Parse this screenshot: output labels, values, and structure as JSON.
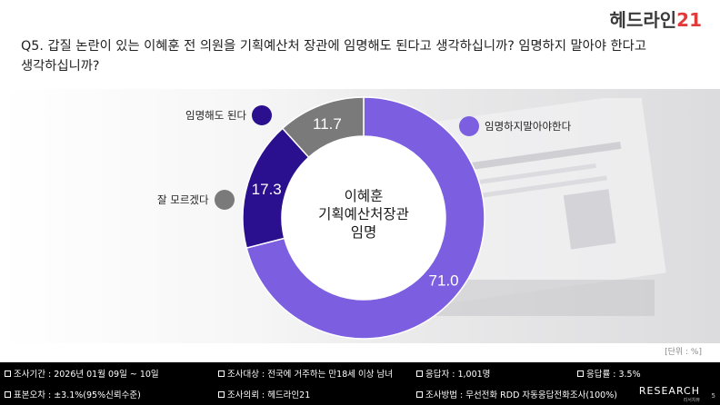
{
  "logo": {
    "text": "헤드라인",
    "accent": "21"
  },
  "question": "Q5. 갑질 논란이 있는 이혜훈 전 의원을 기획예산처 장관에 임명해도 된다고 생각하십니까? 임명하지 말아야 한다고\n생각하십니까?",
  "center_label": "이혜훈\n기획예산처장관\n임명",
  "unit": "[단위 : %]",
  "colors": {
    "oppose": "#7b5fe0",
    "approve": "#2a0f8f",
    "unknown": "#7a7a7a"
  },
  "chart_data": {
    "type": "pie",
    "donut": true,
    "categories": [
      "임명하지말아야한다",
      "임명해도 된다",
      "잘 모르겠다"
    ],
    "values": [
      71.0,
      17.3,
      11.7
    ],
    "value_labels": [
      "71.0",
      "17.3",
      "11.7"
    ],
    "legend": [
      "임명해도 된다",
      "잘 모르겠다",
      "임명하지말아야한다"
    ]
  },
  "footer": {
    "period": "조사기간 : 2026년 01월 09일 ~ 10일",
    "target": "조사대상 : 전국에 거주하는 만18세 이상 남녀",
    "respondents": "응답자 : 1,001명",
    "response_rate": "응답률 : 3.5%",
    "error": "표본오차 : ±3.1%(95%신뢰수준)",
    "client": "조사의뢰 : 헤드라인21",
    "method": "조사방법 : 무선전화 RDD 자동응답전화조사(100%)"
  },
  "research_logo": {
    "main": "RESEARCH",
    "sub": "리서치뷰"
  },
  "page_number": "5"
}
